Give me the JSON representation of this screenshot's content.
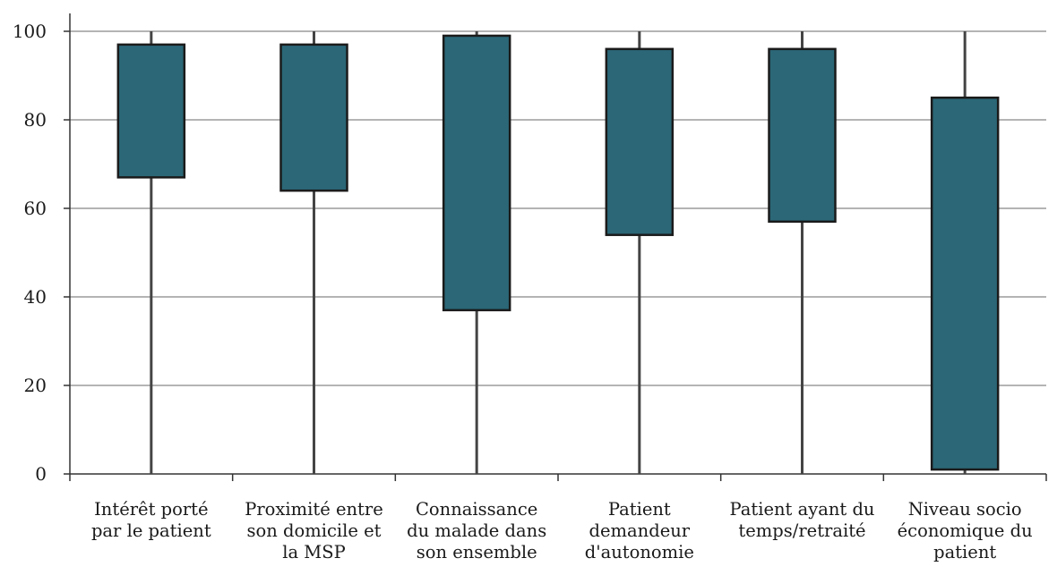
{
  "chart_data": {
    "type": "box",
    "title": "",
    "xlabel": "",
    "ylabel": "",
    "ylim": [
      0,
      100
    ],
    "yticks": [
      0,
      20,
      40,
      60,
      80,
      100
    ],
    "grid": "horizontal",
    "legend": "none",
    "colors": {
      "box_fill": "#2b6777",
      "box_stroke": "#1b1b1b",
      "whisker": "#444444",
      "grid": "#b4b4b4",
      "axis": "#333333"
    },
    "categories": [
      [
        "Intérêt porté",
        "par le patient"
      ],
      [
        "Proximité entre",
        "son domicile et",
        "la MSP"
      ],
      [
        "Connaissance",
        "du malade dans",
        "son ensemble"
      ],
      [
        "Patient",
        "demandeur",
        "d'autonomie"
      ],
      [
        "Patient ayant du",
        "temps/retraité"
      ],
      [
        "Niveau socio",
        "économique du",
        "patient"
      ]
    ],
    "boxes": [
      {
        "min": 0,
        "q1": 67,
        "q3": 97,
        "max": 100
      },
      {
        "min": 0,
        "q1": 64,
        "q3": 97,
        "max": 100
      },
      {
        "min": 0,
        "q1": 37,
        "q3": 99,
        "max": 100
      },
      {
        "min": 0,
        "q1": 54,
        "q3": 96,
        "max": 100
      },
      {
        "min": 0,
        "q1": 57,
        "q3": 96,
        "max": 100
      },
      {
        "min": 0,
        "q1": 1,
        "q3": 85,
        "max": 100
      }
    ]
  }
}
